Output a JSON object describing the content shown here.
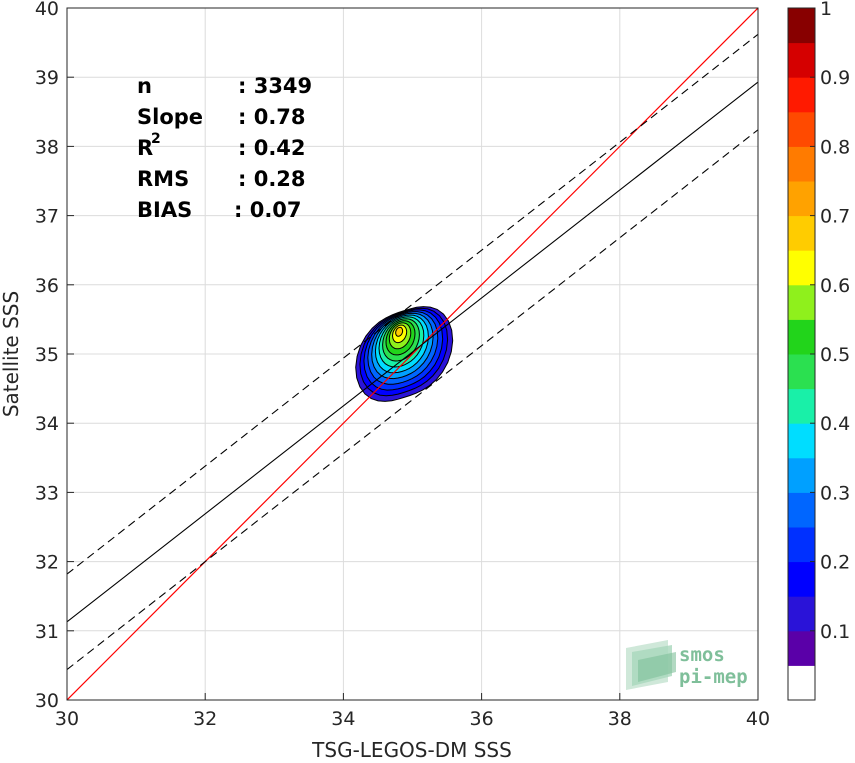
{
  "chart_data": {
    "type": "scatter",
    "subtype": "density-contour",
    "xlabel": "TSG-LEGOS-DM SSS",
    "ylabel": "Satellite SSS",
    "xlim": [
      30,
      40
    ],
    "ylim": [
      30,
      40
    ],
    "xticks": [
      "30",
      "32",
      "34",
      "36",
      "38",
      "40"
    ],
    "yticks": [
      "30",
      "31",
      "32",
      "33",
      "34",
      "35",
      "36",
      "37",
      "38",
      "39",
      "40"
    ],
    "grid": true,
    "stats": [
      {
        "label": "n",
        "value": ": 3349"
      },
      {
        "label": "Slope",
        "value": ": 0.78"
      },
      {
        "label": "R",
        "sup": "2",
        "value": ": 0.42"
      },
      {
        "label": "RMS",
        "value": ": 0.28"
      },
      {
        "label": "BIAS",
        "value": ": 0.07"
      }
    ],
    "lines": {
      "identity": {
        "slope": 1,
        "intercept": 0,
        "color": "#ff0000"
      },
      "fit": {
        "slope": 0.78,
        "intercept_at_x30": 31.13,
        "color": "#000000"
      },
      "fit_upper": {
        "intercept_at_x30": 31.82,
        "style": "dashed"
      },
      "fit_lower": {
        "intercept_at_x30": 30.44,
        "style": "dashed"
      }
    },
    "density_center": {
      "x": 34.88,
      "y": 35.1
    },
    "colorbar": {
      "range": [
        0,
        1
      ],
      "ticks": [
        "0.1",
        "0.2",
        "0.3",
        "0.4",
        "0.5",
        "0.6",
        "0.7",
        "0.8",
        "0.9",
        "1"
      ],
      "colors": [
        "#ffffff",
        "#5a00a8",
        "#2a13d8",
        "#0000ff",
        "#0030ff",
        "#0066ff",
        "#00a0ff",
        "#00ddff",
        "#19f0a8",
        "#2be050",
        "#22d41b",
        "#8ff01c",
        "#ffff00",
        "#ffcc00",
        "#ffa200",
        "#ff7b00",
        "#ff4a00",
        "#ff1a00",
        "#d50000",
        "#880000"
      ]
    }
  },
  "logo": {
    "line1": "smos",
    "line2": "pi-mep"
  }
}
